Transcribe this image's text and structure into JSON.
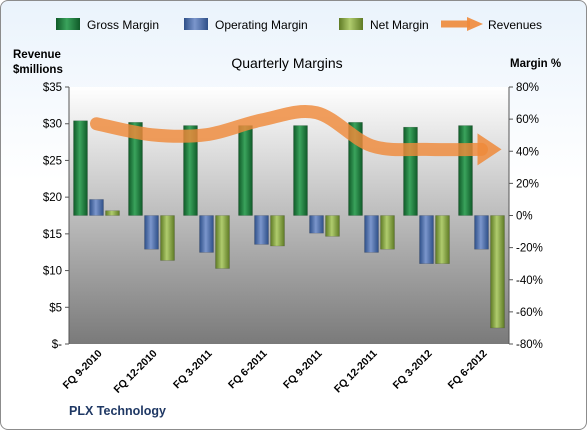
{
  "chart_data": {
    "type": "bar",
    "title": "Quarterly Margins",
    "company": "PLX Technology",
    "categories": [
      "FQ 9-2010",
      "FQ 12-2010",
      "FQ 3-2011",
      "FQ 6-2011",
      "FQ 9-2011",
      "FQ 12-2011",
      "FQ 3-2012",
      "FQ 6-2012"
    ],
    "series": [
      {
        "name": "Gross Margin",
        "axis": "right",
        "kind": "bar",
        "color": "#1f7a3a",
        "values": [
          59,
          58,
          56,
          56,
          56,
          58,
          55,
          56
        ]
      },
      {
        "name": "Operating Margin",
        "axis": "right",
        "kind": "bar",
        "color": "#4f6ea8",
        "values": [
          10,
          -21,
          -23,
          -18,
          -11,
          -23,
          -30,
          -21
        ]
      },
      {
        "name": "Net Margin",
        "axis": "right",
        "kind": "bar",
        "color": "#8aa84a",
        "values": [
          3,
          -28,
          -33,
          -19,
          -13,
          -21,
          -30,
          -70
        ]
      },
      {
        "name": "Revenues",
        "axis": "left",
        "kind": "line",
        "color": "#ef8a3a",
        "values": [
          30,
          28.5,
          28.5,
          30.5,
          31.5,
          27,
          26.5,
          26.5
        ]
      }
    ],
    "left_axis": {
      "title_line1": "Revenue",
      "title_line2": "$millions",
      "ylim": [
        0,
        35
      ],
      "ticks": [
        "$-",
        "$5",
        "$10",
        "$15",
        "$20",
        "$25",
        "$30",
        "$35"
      ],
      "tick_values": [
        0,
        5,
        10,
        15,
        20,
        25,
        30,
        35
      ]
    },
    "right_axis": {
      "title": "Margin %",
      "ylim": [
        -80,
        80
      ],
      "ticks": [
        "-80%",
        "-60%",
        "-40%",
        "-20%",
        "0%",
        "20%",
        "40%",
        "60%",
        "80%"
      ],
      "tick_values": [
        -80,
        -60,
        -40,
        -20,
        0,
        20,
        40,
        60,
        80
      ]
    },
    "legend_position": "top",
    "grid": false
  }
}
